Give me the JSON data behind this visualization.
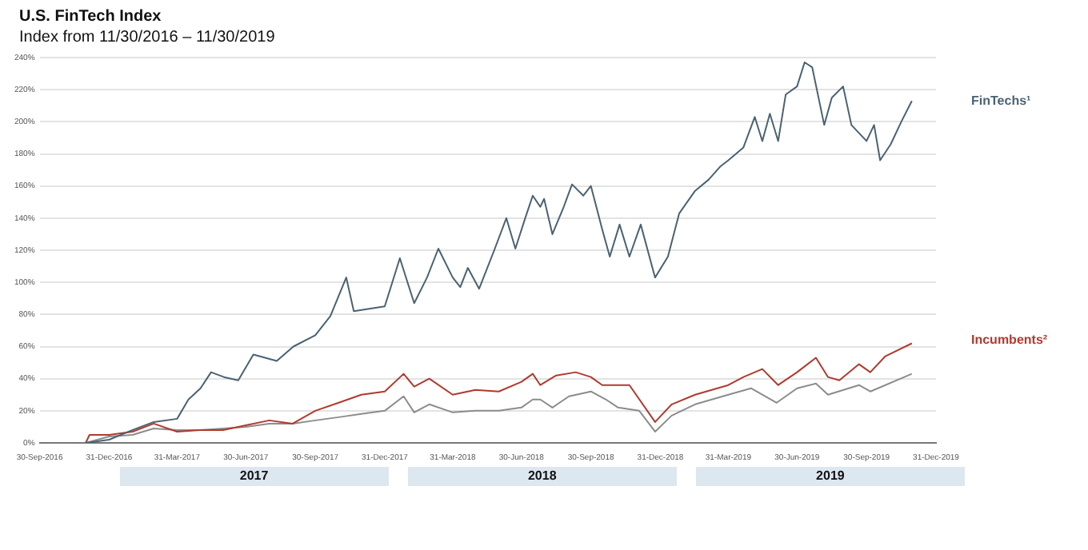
{
  "chart_data": {
    "type": "line",
    "title": "U.S. FinTech Index",
    "subtitle": "Index from 11/30/2016 – 11/30/2019",
    "annotations": [
      "2017",
      "2018",
      "2019"
    ],
    "xlim": [
      "2016-09-30",
      "2019-12-31"
    ],
    "xticks": [
      {
        "value": "2016-09-30",
        "label": "30-Sep-2016"
      },
      {
        "value": "2016-12-31",
        "label": "31-Dec-2016"
      },
      {
        "value": "2017-03-31",
        "label": "31-Mar-2017"
      },
      {
        "value": "2017-06-30",
        "label": "30-Jun-2017"
      },
      {
        "value": "2017-09-30",
        "label": "30-Sep-2017"
      },
      {
        "value": "2017-12-31",
        "label": "31-Dec-2017"
      },
      {
        "value": "2018-03-31",
        "label": "31-Mar-2018"
      },
      {
        "value": "2018-06-30",
        "label": "30-Jun-2018"
      },
      {
        "value": "2018-09-30",
        "label": "30-Sep-2018"
      },
      {
        "value": "2018-12-31",
        "label": "31-Dec-2018"
      },
      {
        "value": "2019-03-31",
        "label": "31-Mar-2019"
      },
      {
        "value": "2019-06-30",
        "label": "30-Jun-2019"
      },
      {
        "value": "2019-09-30",
        "label": "30-Sep-2019"
      },
      {
        "value": "2019-12-31",
        "label": "31-Dec-2019"
      }
    ],
    "ylim": [
      0,
      240
    ],
    "yticks": [
      {
        "value": 0,
        "label": "0%"
      },
      {
        "value": 20,
        "label": "20%"
      },
      {
        "value": 40,
        "label": "40%"
      },
      {
        "value": 60,
        "label": "60%"
      },
      {
        "value": 80,
        "label": "80%"
      },
      {
        "value": 100,
        "label": "100%"
      },
      {
        "value": 120,
        "label": "120%"
      },
      {
        "value": 140,
        "label": "140%"
      },
      {
        "value": 160,
        "label": "160%"
      },
      {
        "value": 180,
        "label": "180%"
      },
      {
        "value": 200,
        "label": "200%"
      },
      {
        "value": 220,
        "label": "220%"
      },
      {
        "value": 240,
        "label": "240%"
      }
    ],
    "grid": "y",
    "marker": "none",
    "line_style": "solid",
    "series": [
      {
        "name": "FinTechs¹",
        "color": "#4a6272",
        "x": [
          "2016-11-30",
          "2016-12-31",
          "2017-01-31",
          "2017-02-28",
          "2017-03-31",
          "2017-04-15",
          "2017-05-01",
          "2017-05-15",
          "2017-06-01",
          "2017-06-20",
          "2017-07-10",
          "2017-08-10",
          "2017-09-01",
          "2017-09-30",
          "2017-10-20",
          "2017-11-10",
          "2017-11-20",
          "2017-12-31",
          "2018-01-20",
          "2018-02-08",
          "2018-02-25",
          "2018-03-12",
          "2018-03-31",
          "2018-04-10",
          "2018-04-20",
          "2018-05-05",
          "2018-05-25",
          "2018-06-10",
          "2018-06-22",
          "2018-07-05",
          "2018-07-15",
          "2018-07-25",
          "2018-07-30",
          "2018-08-10",
          "2018-08-25",
          "2018-09-05",
          "2018-09-20",
          "2018-09-30",
          "2018-10-15",
          "2018-10-25",
          "2018-11-07",
          "2018-11-20",
          "2018-12-05",
          "2018-12-24",
          "2019-01-10",
          "2019-01-25",
          "2019-02-15",
          "2019-03-05",
          "2019-03-20",
          "2019-03-31",
          "2019-04-20",
          "2019-05-05",
          "2019-05-15",
          "2019-05-25",
          "2019-06-05",
          "2019-06-15",
          "2019-06-30",
          "2019-07-10",
          "2019-07-20",
          "2019-08-05",
          "2019-08-15",
          "2019-08-30",
          "2019-09-10",
          "2019-09-30",
          "2019-10-10",
          "2019-10-18",
          "2019-11-01",
          "2019-11-15",
          "2019-11-29"
        ],
        "values": [
          0,
          2,
          8,
          13,
          15,
          27,
          34,
          44,
          41,
          39,
          55,
          51,
          60,
          67,
          79,
          103,
          82,
          85,
          115,
          87,
          103,
          121,
          103,
          97,
          109,
          96,
          120,
          140,
          121,
          140,
          154,
          147,
          152,
          130,
          147,
          161,
          154,
          160,
          133,
          116,
          136,
          116,
          136,
          103,
          116,
          143,
          157,
          164,
          172,
          176,
          184,
          203,
          188,
          205,
          188,
          217,
          222,
          237,
          234,
          198,
          215,
          222,
          198,
          188,
          198,
          176,
          186,
          200,
          213
        ]
      },
      {
        "name": "Incumbents²",
        "color": "#b03a2e",
        "x": [
          "2016-11-30",
          "2016-12-05",
          "2016-12-31",
          "2017-01-31",
          "2017-02-28",
          "2017-03-31",
          "2017-04-30",
          "2017-05-31",
          "2017-06-30",
          "2017-07-31",
          "2017-08-31",
          "2017-09-30",
          "2017-10-31",
          "2017-11-30",
          "2017-12-31",
          "2018-01-25",
          "2018-02-08",
          "2018-02-28",
          "2018-03-31",
          "2018-04-30",
          "2018-05-31",
          "2018-06-30",
          "2018-07-15",
          "2018-07-25",
          "2018-08-15",
          "2018-09-10",
          "2018-09-30",
          "2018-10-15",
          "2018-11-01",
          "2018-11-20",
          "2018-12-24",
          "2019-01-15",
          "2019-02-15",
          "2019-03-31",
          "2019-04-20",
          "2019-05-15",
          "2019-06-05",
          "2019-06-30",
          "2019-07-25",
          "2019-08-10",
          "2019-08-25",
          "2019-09-20",
          "2019-10-05",
          "2019-10-25",
          "2019-11-29"
        ],
        "values": [
          0,
          5,
          5,
          7,
          12,
          7,
          8,
          8,
          11,
          14,
          12,
          20,
          25,
          30,
          32,
          43,
          35,
          40,
          30,
          33,
          32,
          38,
          43,
          36,
          42,
          44,
          41,
          36,
          36,
          36,
          13,
          24,
          30,
          36,
          41,
          46,
          36,
          44,
          53,
          41,
          39,
          49,
          44,
          54,
          62
        ]
      },
      {
        "color": "#8c8c8c",
        "x": [
          "2016-11-30",
          "2016-12-31",
          "2017-01-31",
          "2017-02-28",
          "2017-03-31",
          "2017-04-30",
          "2017-05-31",
          "2017-06-30",
          "2017-07-31",
          "2017-08-31",
          "2017-09-30",
          "2017-10-31",
          "2017-11-30",
          "2017-12-31",
          "2018-01-25",
          "2018-02-08",
          "2018-02-28",
          "2018-03-31",
          "2018-04-30",
          "2018-05-31",
          "2018-06-30",
          "2018-07-15",
          "2018-07-25",
          "2018-08-10",
          "2018-09-01",
          "2018-09-30",
          "2018-10-20",
          "2018-11-05",
          "2018-12-03",
          "2018-12-24",
          "2019-01-15",
          "2019-02-15",
          "2019-03-31",
          "2019-04-30",
          "2019-06-03",
          "2019-06-30",
          "2019-07-25",
          "2019-08-10",
          "2019-09-20",
          "2019-10-05",
          "2019-11-29"
        ],
        "values": [
          0,
          4,
          5,
          9,
          8,
          8,
          9,
          10,
          12,
          12,
          14,
          16,
          18,
          20,
          29,
          19,
          24,
          19,
          20,
          20,
          22,
          27,
          27,
          22,
          29,
          32,
          27,
          22,
          20,
          7,
          17,
          24,
          30,
          34,
          25,
          34,
          37,
          30,
          36,
          32,
          43
        ]
      }
    ]
  }
}
